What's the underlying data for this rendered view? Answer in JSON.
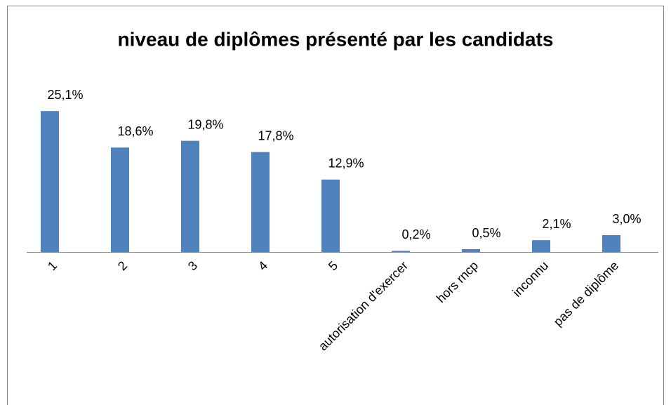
{
  "chart_data": {
    "type": "bar",
    "title": "niveau de diplômes présenté par les candidats",
    "categories": [
      "1",
      "2",
      "3",
      "4",
      "5",
      "autorisation d'exercer",
      "hors rncp",
      "inconnu",
      "pas de diplôme"
    ],
    "values": [
      25.1,
      18.6,
      19.8,
      17.8,
      12.9,
      0.2,
      0.5,
      2.1,
      3.0
    ],
    "value_labels": [
      "25,1%",
      "18,6%",
      "19,8%",
      "17,8%",
      "12,9%",
      "0,2%",
      "0,5%",
      "2,1%",
      "3,0%"
    ],
    "color": "#4f81bd"
  }
}
